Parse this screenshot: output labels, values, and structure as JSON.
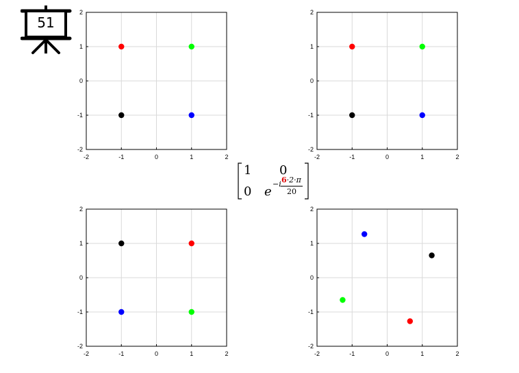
{
  "slide": {
    "number": "51"
  },
  "matrix": {
    "a11": "1",
    "a12": "0",
    "a21": "0",
    "base": "e",
    "exp_prefix": "−i",
    "exp_highlight": "6",
    "exp_rest": "·2·π",
    "exp_denominator": "20",
    "highlight_color": "#e00000"
  },
  "chart_data": [
    {
      "type": "scatter",
      "xlim": [
        -2,
        2
      ],
      "ylim": [
        -2,
        2
      ],
      "xticks": [
        -2,
        -1,
        0,
        1,
        2
      ],
      "yticks": [
        -2,
        -1,
        0,
        1,
        2
      ],
      "grid": true,
      "points": [
        {
          "x": -1,
          "y": 1,
          "color": "#ff0000"
        },
        {
          "x": 1,
          "y": 1,
          "color": "#00ff00"
        },
        {
          "x": -1,
          "y": -1,
          "color": "#000000"
        },
        {
          "x": 1,
          "y": -1,
          "color": "#0000ff"
        }
      ]
    },
    {
      "type": "scatter",
      "xlim": [
        -2,
        2
      ],
      "ylim": [
        -2,
        2
      ],
      "xticks": [
        -2,
        -1,
        0,
        1,
        2
      ],
      "yticks": [
        -2,
        -1,
        0,
        1,
        2
      ],
      "grid": true,
      "points": [
        {
          "x": -1,
          "y": 1,
          "color": "#ff0000"
        },
        {
          "x": 1,
          "y": 1,
          "color": "#00ff00"
        },
        {
          "x": -1,
          "y": -1,
          "color": "#000000"
        },
        {
          "x": 1,
          "y": -1,
          "color": "#0000ff"
        }
      ]
    },
    {
      "type": "scatter",
      "xlim": [
        -2,
        2
      ],
      "ylim": [
        -2,
        2
      ],
      "xticks": [
        -2,
        -1,
        0,
        1,
        2
      ],
      "yticks": [
        -2,
        -1,
        0,
        1,
        2
      ],
      "grid": true,
      "points": [
        {
          "x": -1,
          "y": 1,
          "color": "#000000"
        },
        {
          "x": 1,
          "y": 1,
          "color": "#ff0000"
        },
        {
          "x": -1,
          "y": -1,
          "color": "#0000ff"
        },
        {
          "x": 1,
          "y": -1,
          "color": "#00ff00"
        }
      ]
    },
    {
      "type": "scatter",
      "xlim": [
        -2,
        2
      ],
      "ylim": [
        -2,
        2
      ],
      "xticks": [
        -2,
        -1,
        0,
        1,
        2
      ],
      "yticks": [
        -2,
        -1,
        0,
        1,
        2
      ],
      "grid": true,
      "points": [
        {
          "x": -0.65,
          "y": 1.27,
          "color": "#0000ff"
        },
        {
          "x": 1.27,
          "y": 0.65,
          "color": "#000000"
        },
        {
          "x": -1.27,
          "y": -0.65,
          "color": "#00ff00"
        },
        {
          "x": 0.65,
          "y": -1.27,
          "color": "#ff0000"
        }
      ]
    }
  ]
}
